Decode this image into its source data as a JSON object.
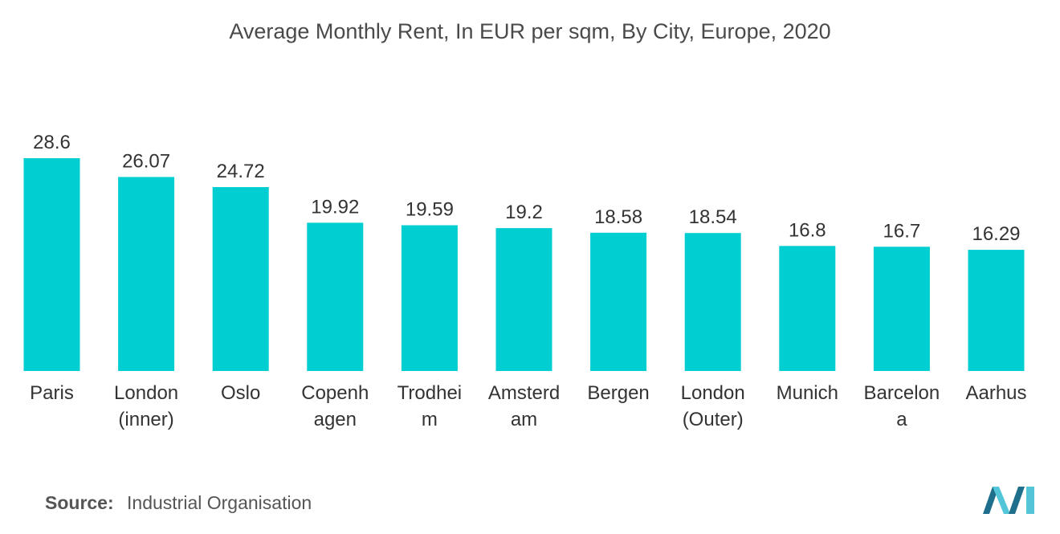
{
  "chart_data": {
    "type": "bar",
    "title": "Average Monthly Rent, In EUR per sqm, By City, Europe, 2020",
    "categories": [
      [
        "Paris"
      ],
      [
        "London",
        "(inner)"
      ],
      [
        "Oslo"
      ],
      [
        "Copenh",
        "agen"
      ],
      [
        "Trodhei",
        "m"
      ],
      [
        "Amsterd",
        "am"
      ],
      [
        "Bergen"
      ],
      [
        "London",
        "(Outer)"
      ],
      [
        "Munich"
      ],
      [
        "Barcelon",
        "a"
      ],
      [
        "Aarhus"
      ]
    ],
    "values": [
      28.6,
      26.07,
      24.72,
      19.92,
      19.59,
      19.2,
      18.58,
      18.54,
      16.8,
      16.7,
      16.29
    ],
    "value_labels": [
      "28.6",
      "26.07",
      "24.72",
      "19.92",
      "19.59",
      "19.2",
      "18.58",
      "18.54",
      "16.8",
      "16.7",
      "16.29"
    ],
    "bar_color": "#00CED1",
    "xlabel": "",
    "ylabel": "",
    "ylim": [
      0,
      28.6
    ],
    "grid": false,
    "legend": "none"
  },
  "source": {
    "label": "Source:",
    "text": "Industrial Organisation"
  },
  "colors": {
    "logo_dark": "#1F6E8C",
    "logo_light": "#52C6D8"
  }
}
